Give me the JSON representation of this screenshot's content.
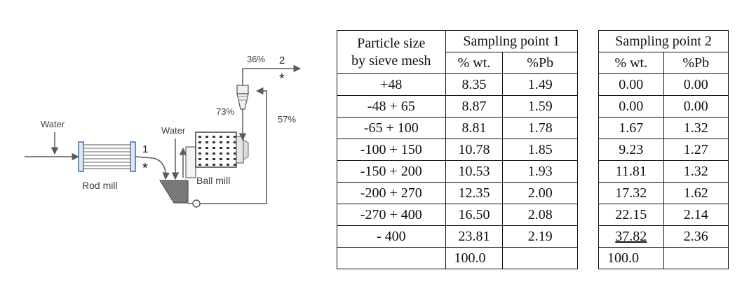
{
  "diagram": {
    "water_left": "Water",
    "water_mid": "Water",
    "rod_mill": "Rod mill",
    "ball_mill": "Ball mill",
    "point1_number": "1",
    "point1_star": "*",
    "point2_number": "2",
    "point2_star": "*",
    "pct_36": "36%",
    "pct_73": "73%",
    "pct_57": "57%"
  },
  "table1": {
    "size_header_line1": "Particle size",
    "size_header_line2": "by sieve mesh",
    "group_header": "Sampling point 1",
    "col_wt": "% wt.",
    "col_pb": "%Pb",
    "rows": [
      {
        "size": "+48",
        "wt": "8.35",
        "pb": "1.49"
      },
      {
        "size": "-48 + 65",
        "wt": "8.87",
        "pb": "1.59"
      },
      {
        "size": "-65 + 100",
        "wt": "8.81",
        "pb": "1.78"
      },
      {
        "size": "-100 + 150",
        "wt": "10.78",
        "pb": "1.85"
      },
      {
        "size": "-150 + 200",
        "wt": "10.53",
        "pb": "1.93"
      },
      {
        "size": "-200 + 270",
        "wt": "12.35",
        "pb": "2.00"
      },
      {
        "size": "-270 + 400",
        "wt": "16.50",
        "pb": "2.08"
      },
      {
        "size": "- 400",
        "wt": "23.81",
        "pb": "2.19"
      }
    ],
    "total_size": "",
    "total_wt": "100.0",
    "total_pb": ""
  },
  "table2": {
    "group_header": "Sampling point 2",
    "col_wt": "% wt.",
    "col_pb": "%Pb",
    "rows": [
      {
        "wt": "0.00",
        "pb": "0.00"
      },
      {
        "wt": "0.00",
        "pb": "0.00"
      },
      {
        "wt": "1.67",
        "pb": "1.32"
      },
      {
        "wt": "9.23",
        "pb": "1.27"
      },
      {
        "wt": "11.81",
        "pb": "1.32"
      },
      {
        "wt": "17.32",
        "pb": "1.62"
      },
      {
        "wt": "22.15",
        "pb": "2.14"
      },
      {
        "wt": "37.82",
        "pb": "2.36"
      }
    ],
    "total_wt": "100.0",
    "total_pb": ""
  },
  "colors": {
    "diagram_line": "#5a5a5a",
    "mill_blue": "#3a6fb0",
    "text": "#111111"
  }
}
